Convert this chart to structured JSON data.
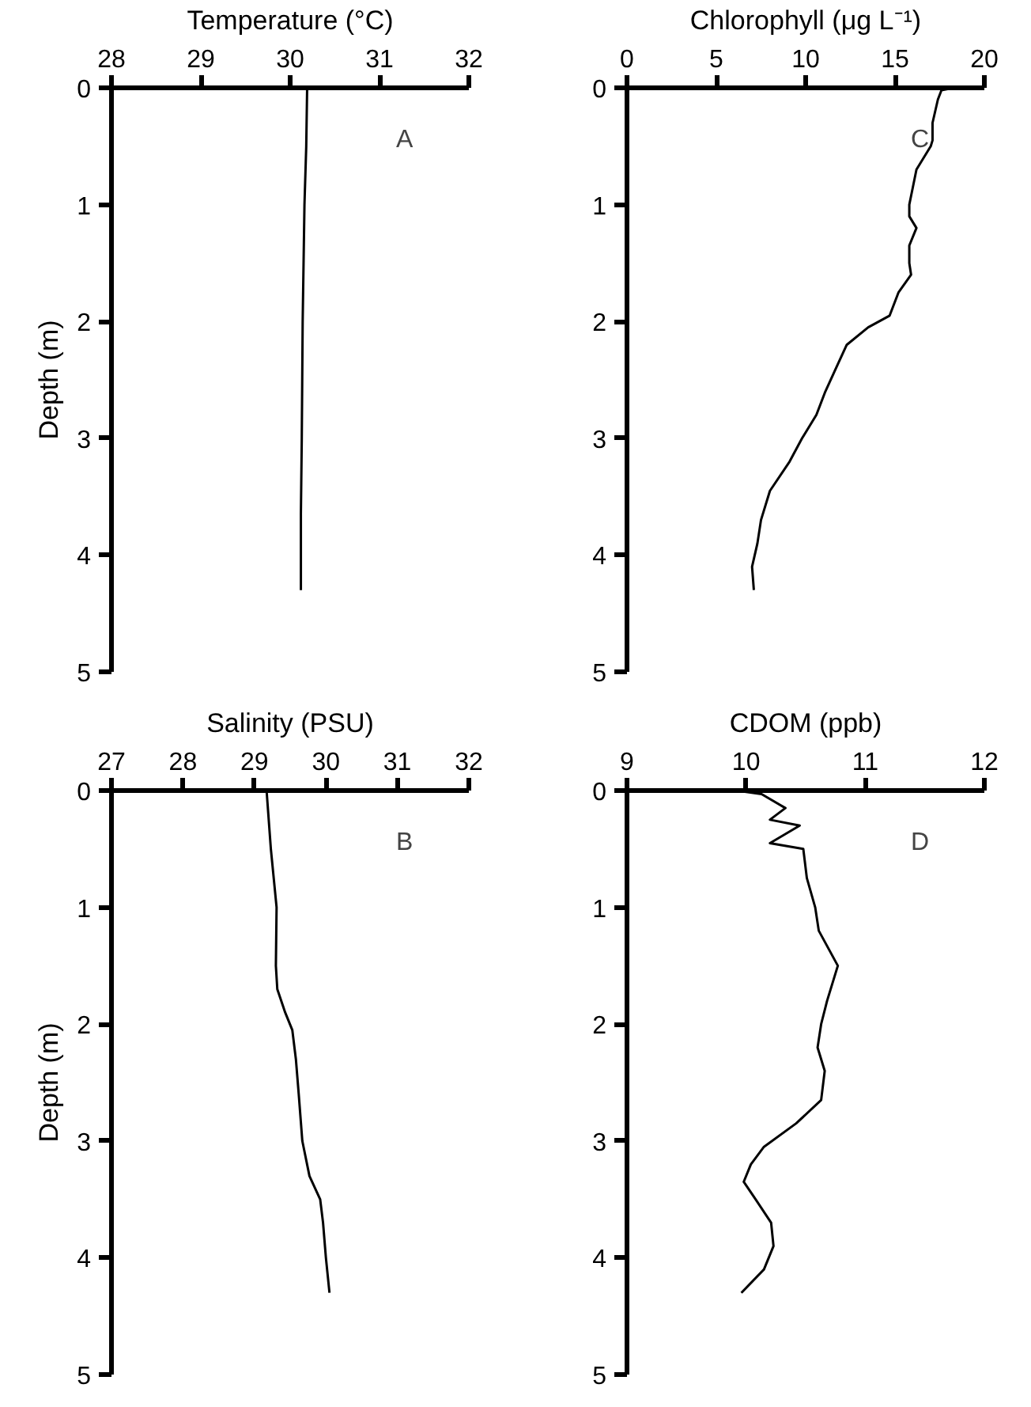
{
  "chart_data": [
    {
      "type": "line",
      "xlabel": "Temperature (°C)",
      "ylabel": "Depth (m)",
      "annotations": [
        "A"
      ],
      "xlim": [
        28,
        32
      ],
      "xticks": [
        28,
        29,
        30,
        31,
        32
      ],
      "ylim": [
        5,
        0
      ],
      "yticks": [
        0,
        1,
        2,
        3,
        4,
        5
      ],
      "series": [
        {
          "color": "#000000",
          "x": [
            30.19,
            30.18,
            30.16,
            30.14,
            30.13,
            30.12,
            30.12,
            30.12
          ],
          "values": [
            0,
            0.5,
            1,
            2,
            3,
            3.65,
            4,
            4.3
          ]
        }
      ]
    },
    {
      "type": "line",
      "xlabel": "Chlorophyll (μg L⁻¹)",
      "annotations": [
        "C"
      ],
      "xlim": [
        0,
        20
      ],
      "xticks": [
        0,
        5,
        10,
        15,
        20
      ],
      "ylim": [
        5,
        0
      ],
      "yticks": [
        0,
        1,
        2,
        3,
        4,
        5
      ],
      "series": [
        {
          "color": "#000000",
          "x": [
            18.3,
            17.6,
            17.4,
            17.1,
            17.1,
            17.0,
            16.2,
            16.0,
            15.8,
            15.8,
            16.2,
            15.8,
            15.8,
            15.9,
            15.2,
            14.7,
            13.5,
            12.3,
            11.7,
            11.1,
            10.6,
            9.8,
            9.1,
            8.0,
            7.5,
            7.3,
            7.0,
            7.1
          ],
          "values": [
            0,
            0.02,
            0.1,
            0.3,
            0.45,
            0.5,
            0.7,
            0.85,
            1.0,
            1.1,
            1.2,
            1.35,
            1.5,
            1.6,
            1.75,
            1.95,
            2.05,
            2.2,
            2.4,
            2.6,
            2.8,
            3.0,
            3.2,
            3.45,
            3.7,
            3.9,
            4.1,
            4.3
          ]
        }
      ]
    },
    {
      "type": "line",
      "xlabel": "Salinity (PSU)",
      "ylabel": "Depth (m)",
      "annotations": [
        "B"
      ],
      "xlim": [
        27,
        32
      ],
      "xticks": [
        27,
        28,
        29,
        30,
        31,
        32
      ],
      "ylim": [
        5,
        0
      ],
      "yticks": [
        0,
        1,
        2,
        3,
        4,
        5
      ],
      "series": [
        {
          "color": "#000000",
          "x": [
            29.17,
            29.23,
            29.31,
            29.3,
            29.32,
            29.43,
            29.53,
            29.58,
            29.62,
            29.67,
            29.77,
            29.92,
            29.96,
            30.0,
            30.05
          ],
          "values": [
            0,
            0.5,
            1.0,
            1.5,
            1.7,
            1.9,
            2.05,
            2.3,
            2.6,
            3.0,
            3.3,
            3.5,
            3.7,
            4.0,
            4.3
          ]
        }
      ]
    },
    {
      "type": "line",
      "xlabel": "CDOM (ppb)",
      "annotations": [
        "D"
      ],
      "xlim": [
        9,
        12
      ],
      "xticks": [
        9,
        10,
        11,
        12
      ],
      "ylim": [
        5,
        0
      ],
      "yticks": [
        0,
        1,
        2,
        3,
        4,
        5
      ],
      "series": [
        {
          "color": "#000000",
          "x": [
            9.92,
            10.13,
            10.33,
            10.2,
            10.45,
            10.2,
            10.48,
            10.51,
            10.58,
            10.61,
            10.77,
            10.68,
            10.63,
            10.6,
            10.66,
            10.63,
            10.42,
            10.15,
            10.04,
            9.98,
            10.08,
            10.21,
            10.23,
            10.15,
            9.96
          ],
          "values": [
            0,
            0.03,
            0.15,
            0.25,
            0.3,
            0.45,
            0.5,
            0.75,
            1.0,
            1.2,
            1.5,
            1.8,
            2.0,
            2.2,
            2.4,
            2.65,
            2.85,
            3.05,
            3.2,
            3.35,
            3.5,
            3.7,
            3.9,
            4.1,
            4.3
          ]
        }
      ]
    }
  ]
}
